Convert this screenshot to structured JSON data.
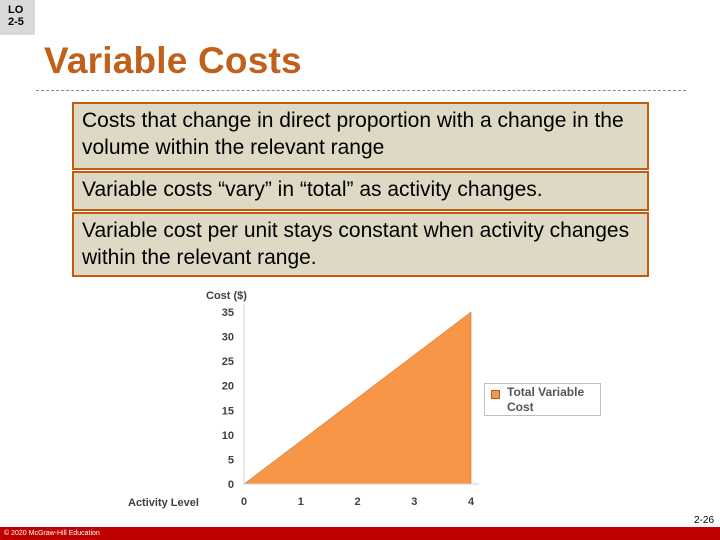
{
  "lo_badge": {
    "line1": "LO",
    "line2": "2-5"
  },
  "title": "Variable Costs",
  "boxes": {
    "definition": "Costs that change in direct proportion with a change in the volume within the relevant range",
    "total": "Variable costs “vary” in “total” as activity changes.",
    "per_unit": "Variable cost per unit stays constant when activity changes within the relevant range."
  },
  "chart_data": {
    "type": "area",
    "xlabel": "Activity Level",
    "ylabel": "Cost ($)",
    "x": [
      0,
      1,
      2,
      3,
      4
    ],
    "series": [
      {
        "name": "Total Variable Cost",
        "values": [
          0,
          8.75,
          17.5,
          26.25,
          35
        ],
        "color": "#f79646"
      }
    ],
    "xlim": [
      0,
      4
    ],
    "ylim": [
      0,
      35
    ],
    "x_ticks": [
      0,
      1,
      2,
      3,
      4
    ],
    "y_ticks": [
      0,
      5,
      10,
      15,
      20,
      25,
      30,
      35
    ],
    "grid": false,
    "legend_position": "right"
  },
  "legend": {
    "label_line1": "Total Variable",
    "label_line2": "Cost"
  },
  "page_number": "2-26",
  "copyright": "© 2020 McGraw-Hill Education"
}
